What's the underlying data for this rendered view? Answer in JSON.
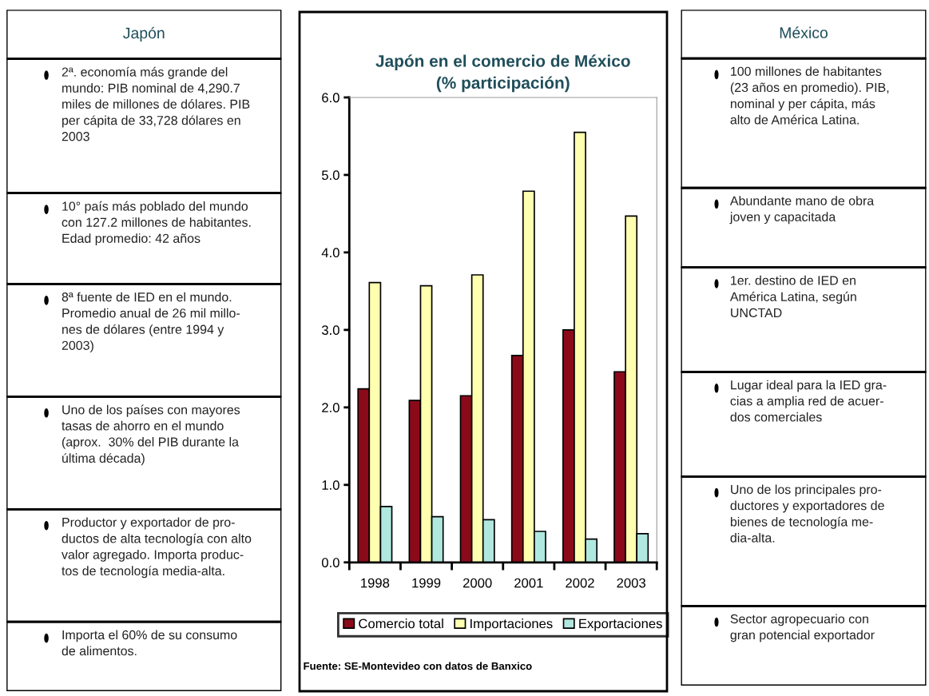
{
  "chart_data": [
    {
      "type": "other",
      "title": "Japón",
      "annotations": [
        "2ª. economía más grande del\nmundo: PIB nominal de 4,290.7\nmiles de millones de dólares. PIB\nper cápita de 33,728 dólares en\n2003",
        "10° país más poblado del mundo\ncon 127.2 millones de habitantes.\nEdad promedio: 42 años",
        "8ª fuente de IED en el mundo.\nPromedio anual de 26 mil millo-\nnes de dólares (entre 1994 y\n2003)",
        "Uno de los países con mayores\ntasas de ahorro en el mundo\n(aprox.  30% del PIB durante la\núltima década)",
        "Productor y exportador de pro-\nductos de alta tecnología con alto\nvalor agregado. Importa produc-\ntos de tecnología media-alta.",
        "Importa el 60% de su consumo\nde alimentos."
      ]
    },
    {
      "type": "bar",
      "title": "Japón en el comercio de México\n(% participación)",
      "categories": [
        "1998",
        "1999",
        "2000",
        "2001",
        "2002",
        "2003"
      ],
      "series": [
        {
          "name": "Comercio total",
          "color": "#8b0a1a",
          "values": [
            2.24,
            2.09,
            2.15,
            2.67,
            3.0,
            2.46
          ]
        },
        {
          "name": "Importaciones",
          "color": "#ffffb0",
          "values": [
            3.61,
            3.57,
            3.71,
            4.79,
            5.55,
            4.47
          ]
        },
        {
          "name": "Exportaciones",
          "color": "#b0e8e0",
          "values": [
            0.72,
            0.59,
            0.55,
            0.4,
            0.3,
            0.37
          ]
        }
      ],
      "ylim": [
        0,
        6
      ],
      "yticks": [
        {
          "value": 0,
          "label": "0.0"
        },
        {
          "value": 1,
          "label": "1.0"
        },
        {
          "value": 2,
          "label": "2.0"
        },
        {
          "value": 3,
          "label": "3.0"
        },
        {
          "value": 4,
          "label": "4.0"
        },
        {
          "value": 5,
          "label": "5.0"
        },
        {
          "value": 6,
          "label": "6.0"
        }
      ],
      "grid": false,
      "legend": "bottom",
      "annotations": [
        "Fuente: SE-Montevideo con datos de Banxico"
      ]
    },
    {
      "type": "other",
      "title": "México",
      "annotations": [
        "100 millones de habitantes\n(23 años en promedio). PIB,\nnominal y per cápita, más\nalto de América Latina.",
        "Abundante mano de obra\njoven y capacitada",
        "1er. destino de IED en\nAmérica Latina, según\nUNCTAD",
        "Lugar ideal para la IED gra-\ncias a amplia red de acuer-\ndos comerciales",
        "Uno de los principales pro-\nductores y exportadores de\nbienes de tecnología me-\ndia-alta.",
        "Sector agropecuario con\ngran potencial exportador"
      ]
    }
  ]
}
